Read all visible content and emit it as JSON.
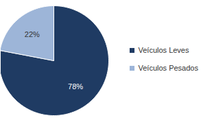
{
  "chart_data": {
    "type": "pie",
    "categories": [
      "Veículos Leves",
      "Veículos Pesados"
    ],
    "values": [
      78,
      22
    ],
    "value_labels": [
      "78%",
      "22%"
    ],
    "colors": [
      "#1f3b63",
      "#9db5d8"
    ],
    "data_labels": true,
    "legend": "right"
  }
}
